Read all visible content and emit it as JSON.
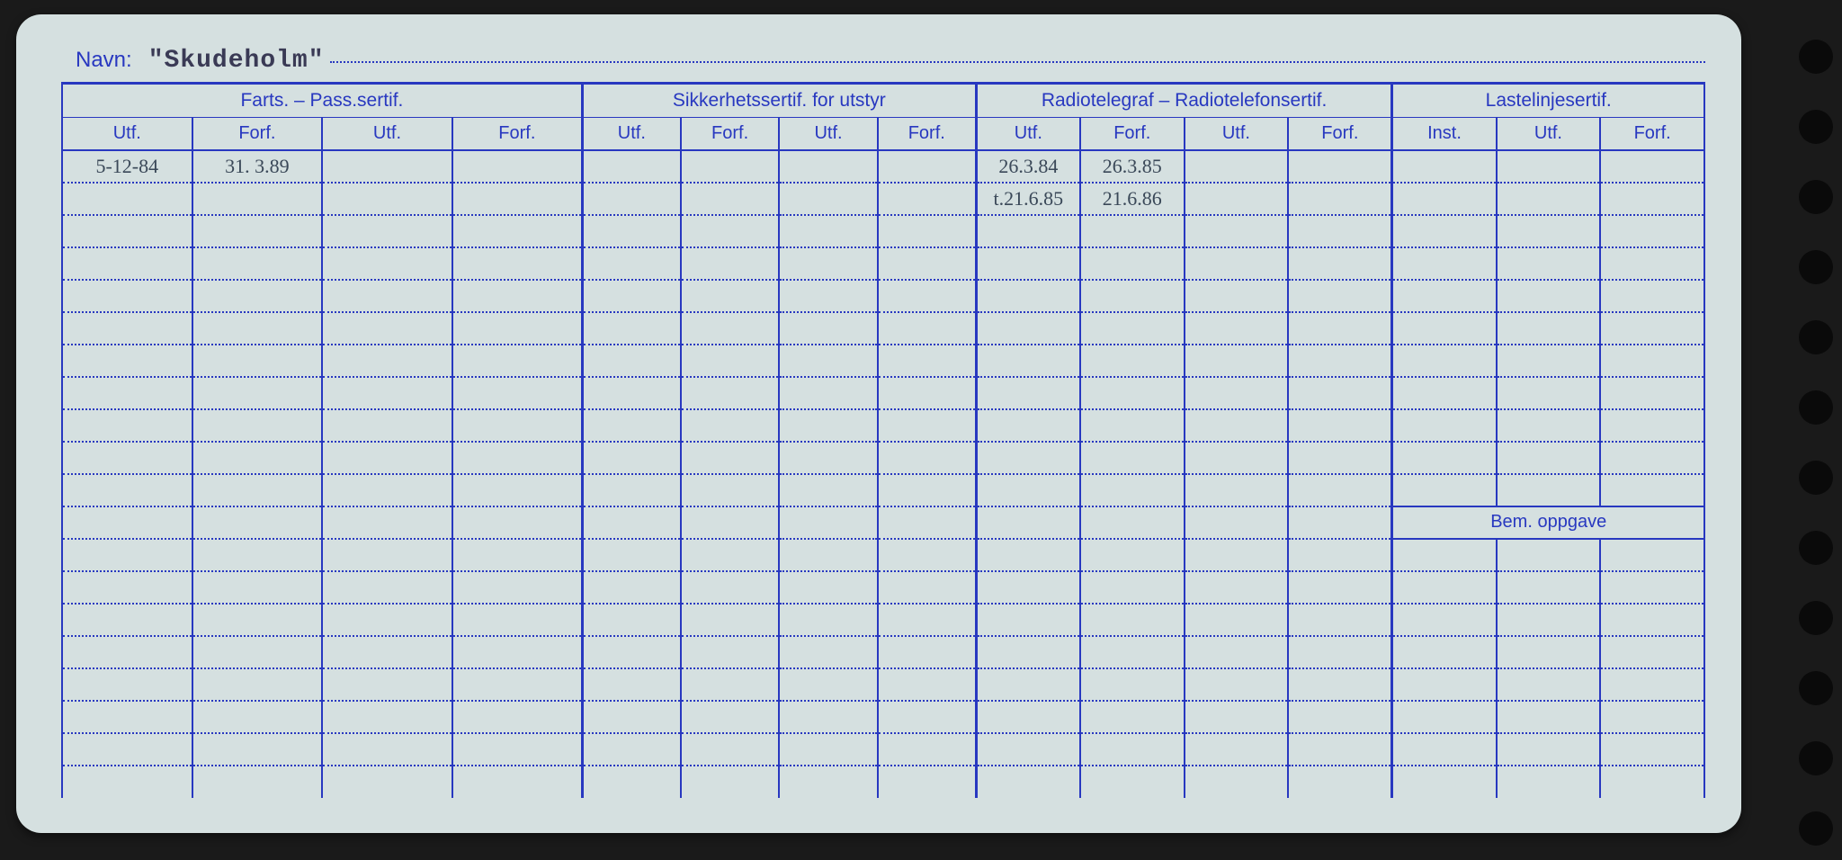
{
  "colors": {
    "card_bg": "#d5e0e0",
    "page_bg": "#1a1a1a",
    "ink_blue": "#2838c0",
    "handwriting": "#3a4858",
    "typewriter": "#3a3a55"
  },
  "header": {
    "navn_label": "Navn:",
    "navn_value": "\"Skudeholm\""
  },
  "groups": [
    {
      "title": "Farts. – Pass.sertif.",
      "subs": [
        "Utf.",
        "Forf.",
        "Utf.",
        "Forf."
      ]
    },
    {
      "title": "Sikkerhetssertif. for utstyr",
      "subs": [
        "Utf.",
        "Forf.",
        "Utf.",
        "Forf."
      ]
    },
    {
      "title": "Radiotelegraf – Radiotelefonsertif.",
      "subs": [
        "Utf.",
        "Forf.",
        "Utf.",
        "Forf."
      ]
    },
    {
      "title": "Lastelinjesertif.",
      "subs": [
        "Inst.",
        "Utf.",
        "Forf."
      ]
    }
  ],
  "bem_label": "Bem. oppgave",
  "rows": [
    {
      "c0": "5-12-84",
      "c1": "31. 3.89",
      "c2": "",
      "c3": "",
      "c4": "",
      "c5": "",
      "c6": "",
      "c7": "",
      "c8": "26.3.84",
      "c9": "26.3.85",
      "c10": "",
      "c11": "",
      "c12": "",
      "c13": "",
      "c14": ""
    },
    {
      "c0": "",
      "c1": "",
      "c2": "",
      "c3": "",
      "c4": "",
      "c5": "",
      "c6": "",
      "c7": "",
      "c8": "t.21.6.85",
      "c9": "21.6.86",
      "c10": "",
      "c11": "",
      "c12": "",
      "c13": "",
      "c14": ""
    },
    {
      "c0": "",
      "c1": "",
      "c2": "",
      "c3": "",
      "c4": "",
      "c5": "",
      "c6": "",
      "c7": "",
      "c8": "",
      "c9": "",
      "c10": "",
      "c11": "",
      "c12": "",
      "c13": "",
      "c14": ""
    },
    {
      "c0": "",
      "c1": "",
      "c2": "",
      "c3": "",
      "c4": "",
      "c5": "",
      "c6": "",
      "c7": "",
      "c8": "",
      "c9": "",
      "c10": "",
      "c11": "",
      "c12": "",
      "c13": "",
      "c14": ""
    },
    {
      "c0": "",
      "c1": "",
      "c2": "",
      "c3": "",
      "c4": "",
      "c5": "",
      "c6": "",
      "c7": "",
      "c8": "",
      "c9": "",
      "c10": "",
      "c11": "",
      "c12": "",
      "c13": "",
      "c14": ""
    },
    {
      "c0": "",
      "c1": "",
      "c2": "",
      "c3": "",
      "c4": "",
      "c5": "",
      "c6": "",
      "c7": "",
      "c8": "",
      "c9": "",
      "c10": "",
      "c11": "",
      "c12": "",
      "c13": "",
      "c14": ""
    },
    {
      "c0": "",
      "c1": "",
      "c2": "",
      "c3": "",
      "c4": "",
      "c5": "",
      "c6": "",
      "c7": "",
      "c8": "",
      "c9": "",
      "c10": "",
      "c11": "",
      "c12": "",
      "c13": "",
      "c14": ""
    },
    {
      "c0": "",
      "c1": "",
      "c2": "",
      "c3": "",
      "c4": "",
      "c5": "",
      "c6": "",
      "c7": "",
      "c8": "",
      "c9": "",
      "c10": "",
      "c11": "",
      "c12": "",
      "c13": "",
      "c14": ""
    },
    {
      "c0": "",
      "c1": "",
      "c2": "",
      "c3": "",
      "c4": "",
      "c5": "",
      "c6": "",
      "c7": "",
      "c8": "",
      "c9": "",
      "c10": "",
      "c11": "",
      "c12": "",
      "c13": "",
      "c14": ""
    },
    {
      "c0": "",
      "c1": "",
      "c2": "",
      "c3": "",
      "c4": "",
      "c5": "",
      "c6": "",
      "c7": "",
      "c8": "",
      "c9": "",
      "c10": "",
      "c11": "",
      "c12": "",
      "c13": "",
      "c14": ""
    },
    {
      "c0": "",
      "c1": "",
      "c2": "",
      "c3": "",
      "c4": "",
      "c5": "",
      "c6": "",
      "c7": "",
      "c8": "",
      "c9": "",
      "c10": "",
      "c11": "",
      "c12": "",
      "c13": "",
      "c14": ""
    },
    {
      "c0": "",
      "c1": "",
      "c2": "",
      "c3": "",
      "c4": "",
      "c5": "",
      "c6": "",
      "c7": "",
      "c8": "",
      "c9": "",
      "c10": "",
      "c11": "",
      "c12": "",
      "c13": "",
      "c14": ""
    },
    {
      "c0": "",
      "c1": "",
      "c2": "",
      "c3": "",
      "c4": "",
      "c5": "",
      "c6": "",
      "c7": "",
      "c8": "",
      "c9": "",
      "c10": "",
      "c11": "",
      "c12": "",
      "c13": "",
      "c14": ""
    },
    {
      "c0": "",
      "c1": "",
      "c2": "",
      "c3": "",
      "c4": "",
      "c5": "",
      "c6": "",
      "c7": "",
      "c8": "",
      "c9": "",
      "c10": "",
      "c11": "",
      "c12": "",
      "c13": "",
      "c14": ""
    },
    {
      "c0": "",
      "c1": "",
      "c2": "",
      "c3": "",
      "c4": "",
      "c5": "",
      "c6": "",
      "c7": "",
      "c8": "",
      "c9": "",
      "c10": "",
      "c11": "",
      "c12": "",
      "c13": "",
      "c14": ""
    },
    {
      "c0": "",
      "c1": "",
      "c2": "",
      "c3": "",
      "c4": "",
      "c5": "",
      "c6": "",
      "c7": "",
      "c8": "",
      "c9": "",
      "c10": "",
      "c11": "",
      "c12": "",
      "c13": "",
      "c14": ""
    },
    {
      "c0": "",
      "c1": "",
      "c2": "",
      "c3": "",
      "c4": "",
      "c5": "",
      "c6": "",
      "c7": "",
      "c8": "",
      "c9": "",
      "c10": "",
      "c11": "",
      "c12": "",
      "c13": "",
      "c14": ""
    },
    {
      "c0": "",
      "c1": "",
      "c2": "",
      "c3": "",
      "c4": "",
      "c5": "",
      "c6": "",
      "c7": "",
      "c8": "",
      "c9": "",
      "c10": "",
      "c11": "",
      "c12": "",
      "c13": "",
      "c14": ""
    },
    {
      "c0": "",
      "c1": "",
      "c2": "",
      "c3": "",
      "c4": "",
      "c5": "",
      "c6": "",
      "c7": "",
      "c8": "",
      "c9": "",
      "c10": "",
      "c11": "",
      "c12": "",
      "c13": "",
      "c14": ""
    },
    {
      "c0": "",
      "c1": "",
      "c2": "",
      "c3": "",
      "c4": "",
      "c5": "",
      "c6": "",
      "c7": "",
      "c8": "",
      "c9": "",
      "c10": "",
      "c11": "",
      "c12": "",
      "c13": "",
      "c14": ""
    }
  ],
  "layout": {
    "num_rows": 20,
    "bem_row_index": 11,
    "hole_count": 12
  }
}
